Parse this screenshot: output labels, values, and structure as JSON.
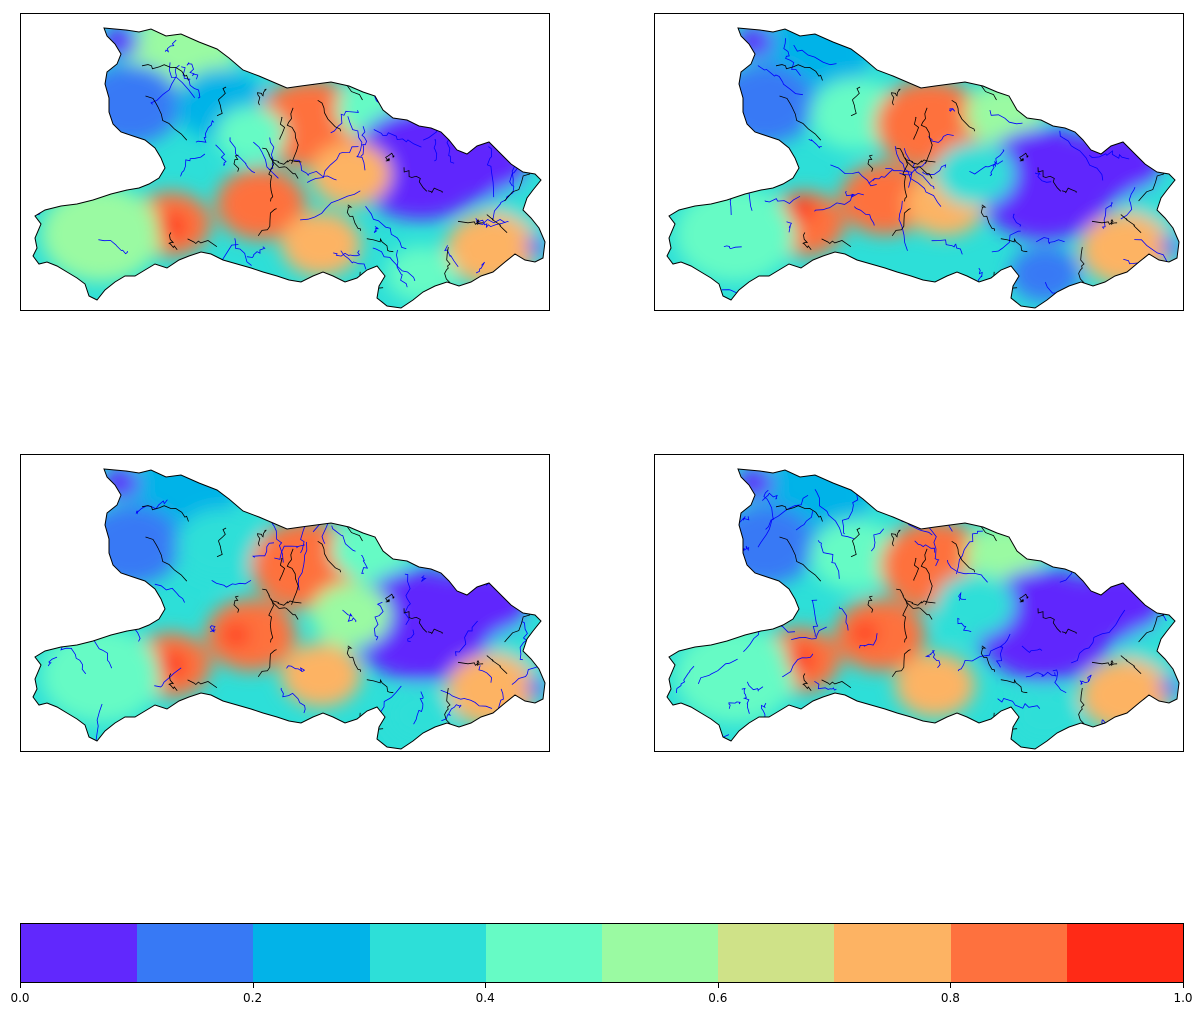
{
  "panels": [
    {
      "name": "map-panel-top-left"
    },
    {
      "name": "map-panel-top-right"
    },
    {
      "name": "map-panel-bottom-left"
    },
    {
      "name": "map-panel-bottom-right"
    }
  ],
  "colorbar": {
    "min": 0.0,
    "max": 1.0,
    "colors": [
      "#6128fd",
      "#3779f5",
      "#02b3e8",
      "#2ddfd8",
      "#66fbc5",
      "#9afaa2",
      "#cfe288",
      "#fdb363",
      "#fe713e",
      "#ff2a16"
    ],
    "tick_labels": [
      "0.0",
      "0.2",
      "0.4",
      "0.6",
      "0.8",
      "1.0"
    ]
  },
  "map_style": {
    "outline_color": "#000000",
    "county_line_color": "#0000ff",
    "prefecture_line_color": "#000000"
  }
}
